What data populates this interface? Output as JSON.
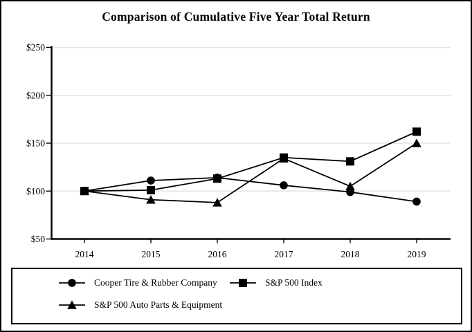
{
  "chart_data": {
    "type": "line",
    "title": "Comparison of Cumulative Five Year Total Return",
    "categories": [
      "2014",
      "2015",
      "2016",
      "2017",
      "2018",
      "2019"
    ],
    "series": [
      {
        "name": "Cooper Tire & Rubber Company",
        "marker": "circle",
        "values": [
          100,
          111,
          114,
          106,
          99,
          89
        ]
      },
      {
        "name": "S&P 500 Index",
        "marker": "square",
        "values": [
          100,
          101,
          113,
          135,
          131,
          162
        ]
      },
      {
        "name": "S&P 500 Auto Parts & Equipment",
        "marker": "triangle",
        "values": [
          100,
          91,
          88,
          134,
          105,
          150
        ]
      }
    ],
    "ylim": [
      50,
      250
    ],
    "yticks": [
      50,
      100,
      150,
      200,
      250
    ],
    "ytick_labels": [
      "$50",
      "$100",
      "$150",
      "$200",
      "$250"
    ],
    "xlabel": "",
    "ylabel": "",
    "grid": "horizontal",
    "legend_position": "bottom-box",
    "colors": {
      "line": "#000000",
      "marker": "#000000",
      "grid": "#e3e3e3",
      "axis": "#000000",
      "background": "#ffffff",
      "border": "#000000"
    }
  },
  "legend": {
    "items": [
      {
        "label": "Cooper Tire & Rubber Company",
        "marker": "circle"
      },
      {
        "label": "S&P 500 Index",
        "marker": "square"
      },
      {
        "label": "S&P 500 Auto Parts & Equipment",
        "marker": "triangle"
      }
    ]
  }
}
